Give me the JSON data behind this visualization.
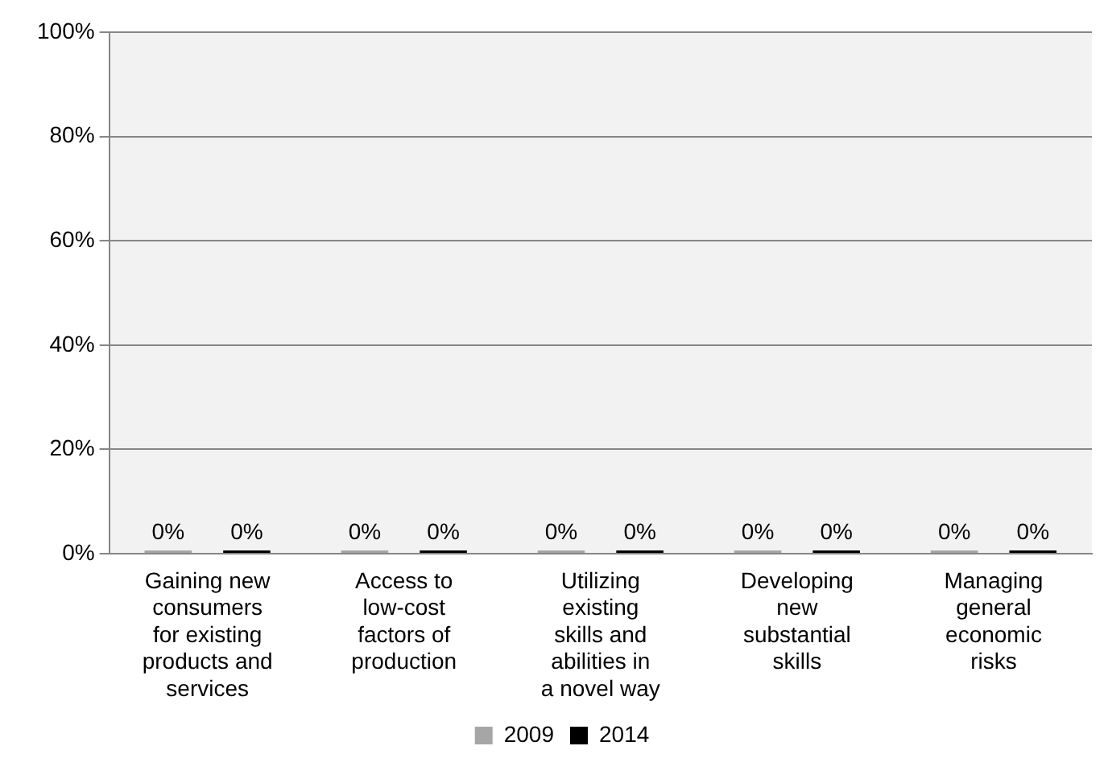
{
  "chart_data": {
    "type": "bar",
    "categories": [
      "Gaining new consumers for existing products and services",
      "Access to low-cost factors of production",
      "Utilizing existing skills and abilities in a novel way",
      "Developing new substantial skills",
      "Managing general economic risks"
    ],
    "series": [
      {
        "name": "2009",
        "color": "#a6a6a6",
        "values": [
          0,
          0,
          0,
          0,
          0
        ],
        "value_labels": [
          "0%",
          "0%",
          "0%",
          "0%",
          "0%"
        ]
      },
      {
        "name": "2014",
        "color": "#000000",
        "values": [
          0,
          0,
          0,
          0,
          0
        ],
        "value_labels": [
          "0%",
          "0%",
          "0%",
          "0%",
          "0%"
        ]
      }
    ],
    "ylim": [
      0,
      1
    ],
    "yticks": [
      {
        "value": 0,
        "label": "0%"
      },
      {
        "value": 0.2,
        "label": "20%"
      },
      {
        "value": 0.4,
        "label": "40%"
      },
      {
        "value": 0.6,
        "label": "60%"
      },
      {
        "value": 0.8,
        "label": "80%"
      },
      {
        "value": 1,
        "label": "100%"
      }
    ],
    "grid": "y",
    "legend": "bottom"
  }
}
